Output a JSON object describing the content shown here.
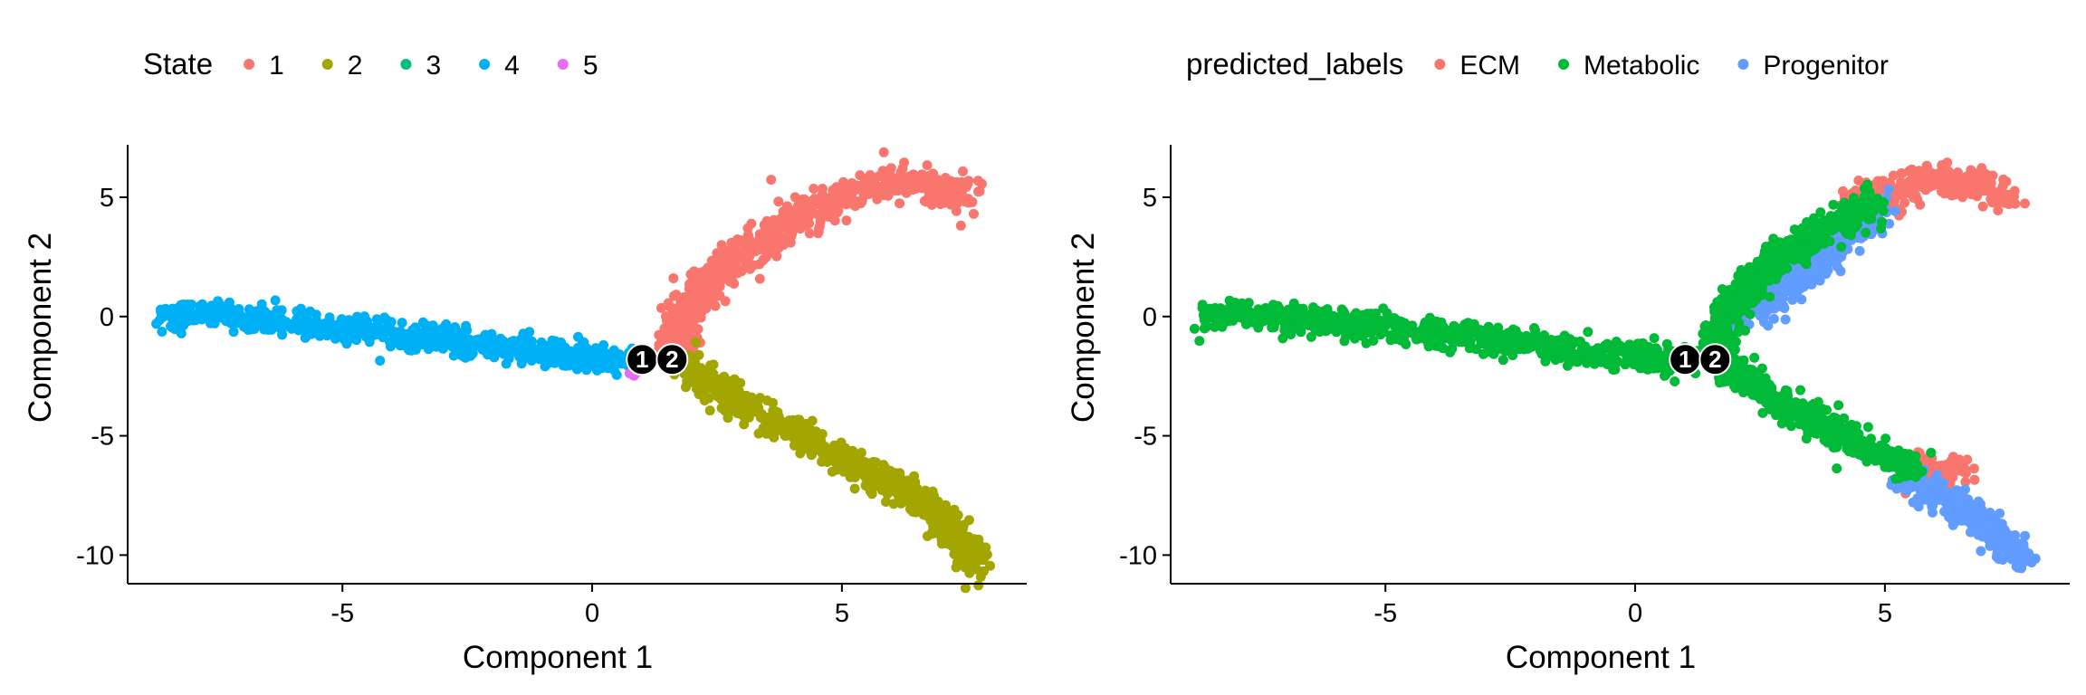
{
  "chart_data": [
    {
      "type": "scatter",
      "xlabel": "Component 1",
      "ylabel": "Component 2",
      "xlim": [
        -9.3,
        8.7
      ],
      "ylim": [
        -11.2,
        7.2
      ],
      "xticks": [
        -5,
        0,
        5
      ],
      "yticks": [
        5,
        0,
        -5,
        -10
      ],
      "tick_labels_x": [
        "-5",
        "0",
        "5"
      ],
      "tick_labels_y": [
        "5",
        "0",
        "-5",
        "-10"
      ],
      "grid": false,
      "legend": {
        "title": "State",
        "position": "top",
        "entries": [
          {
            "label": "1",
            "color": "#F8766D"
          },
          {
            "label": "2",
            "color": "#A3A500"
          },
          {
            "label": "3",
            "color": "#00BF7D"
          },
          {
            "label": "4",
            "color": "#00B0F6"
          },
          {
            "label": "5",
            "color": "#E76BF3"
          }
        ]
      },
      "branch_points": [
        {
          "label": "1",
          "x": 1.0,
          "y": -1.8
        },
        {
          "label": "2",
          "x": 1.6,
          "y": -1.8
        }
      ],
      "series": [
        {
          "name": "4",
          "color": "#00B0F6",
          "path": [
            [
              -8.6,
              0.0
            ],
            [
              -7.5,
              0.1
            ],
            [
              -6.0,
              -0.3
            ],
            [
              -4.0,
              -0.7
            ],
            [
              -2.0,
              -1.2
            ],
            [
              0.0,
              -1.7
            ],
            [
              0.9,
              -1.9
            ]
          ],
          "spread": 0.28
        },
        {
          "name": "5",
          "color": "#E76BF3",
          "path": [
            [
              0.8,
              -2.3
            ],
            [
              1.0,
              -2.1
            ]
          ],
          "spread": 0.12
        },
        {
          "name": "1",
          "color": "#F8766D",
          "path": [
            [
              1.6,
              -1.3
            ],
            [
              1.9,
              0.3
            ],
            [
              2.5,
              1.8
            ],
            [
              3.2,
              2.9
            ],
            [
              4.0,
              4.0
            ],
            [
              5.0,
              5.0
            ],
            [
              6.0,
              5.7
            ],
            [
              6.8,
              5.6
            ],
            [
              7.5,
              4.8
            ]
          ],
          "spread": 0.38
        },
        {
          "name": "2",
          "color": "#A3A500",
          "path": [
            [
              1.8,
              -2.0
            ],
            [
              2.8,
              -3.4
            ],
            [
              4.0,
              -4.8
            ],
            [
              5.0,
              -6.0
            ],
            [
              6.0,
              -6.9
            ],
            [
              6.8,
              -8.2
            ],
            [
              7.4,
              -9.4
            ],
            [
              7.7,
              -10.3
            ]
          ],
          "spread": 0.32
        }
      ]
    },
    {
      "type": "scatter",
      "xlabel": "Component 1",
      "ylabel": "Component 2",
      "xlim": [
        -9.3,
        8.7
      ],
      "ylim": [
        -11.2,
        7.2
      ],
      "xticks": [
        -5,
        0,
        5
      ],
      "yticks": [
        5,
        0,
        -5,
        -10
      ],
      "tick_labels_x": [
        "-5",
        "0",
        "5"
      ],
      "tick_labels_y": [
        "5",
        "0",
        "-5",
        "-10"
      ],
      "grid": false,
      "legend": {
        "title": "predicted_labels",
        "position": "top",
        "entries": [
          {
            "label": "ECM",
            "color": "#F8766D"
          },
          {
            "label": "Metabolic",
            "color": "#00BA38"
          },
          {
            "label": "Progenitor",
            "color": "#619CFF"
          }
        ]
      },
      "branch_points": [
        {
          "label": "1",
          "x": 1.0,
          "y": -1.8
        },
        {
          "label": "2",
          "x": 1.6,
          "y": -1.8
        }
      ],
      "series": [
        {
          "name": "ECM",
          "color": "#F8766D",
          "path": [
            [
              4.2,
              4.5
            ],
            [
              5.0,
              5.2
            ],
            [
              6.0,
              5.7
            ],
            [
              6.8,
              5.6
            ],
            [
              7.5,
              4.8
            ]
          ],
          "extra_path": [
            [
              5.5,
              -6.2
            ],
            [
              6.0,
              -6.4
            ],
            [
              6.6,
              -6.6
            ]
          ],
          "spread": 0.36
        },
        {
          "name": "Progenitor",
          "color": "#619CFF",
          "path": [
            [
              5.3,
              -6.6
            ],
            [
              6.0,
              -7.4
            ],
            [
              6.8,
              -8.4
            ],
            [
              7.4,
              -9.4
            ],
            [
              7.7,
              -10.3
            ]
          ],
          "extra_path": [
            [
              2.3,
              0.0
            ],
            [
              3.2,
              1.5
            ],
            [
              4.0,
              2.8
            ],
            [
              4.9,
              4.6
            ]
          ],
          "spread": 0.3
        },
        {
          "name": "Metabolic",
          "color": "#00BA38",
          "path": [
            [
              -8.6,
              0.0
            ],
            [
              -7.5,
              0.1
            ],
            [
              -6.0,
              -0.3
            ],
            [
              -4.0,
              -0.7
            ],
            [
              -2.0,
              -1.2
            ],
            [
              0.0,
              -1.7
            ],
            [
              0.9,
              -1.9
            ]
          ],
          "extra_path": [
            [
              1.6,
              -1.3
            ],
            [
              1.9,
              0.3
            ],
            [
              2.5,
              1.8
            ],
            [
              3.2,
              2.9
            ],
            [
              4.0,
              3.9
            ],
            [
              4.8,
              4.8
            ]
          ],
          "extra_path2": [
            [
              1.8,
              -2.0
            ],
            [
              2.8,
              -3.4
            ],
            [
              4.0,
              -4.8
            ],
            [
              5.0,
              -6.0
            ],
            [
              5.6,
              -6.4
            ]
          ],
          "spread": 0.32
        }
      ]
    }
  ]
}
